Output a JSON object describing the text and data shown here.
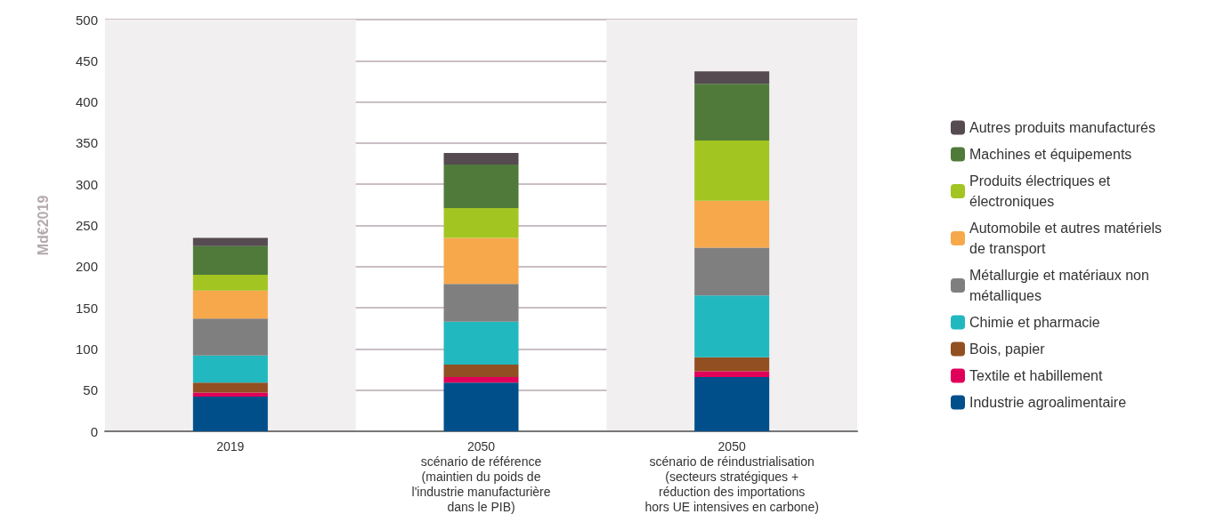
{
  "chart_data": {
    "type": "bar",
    "stacked": true,
    "ylabel": "Md€2019",
    "categories": [
      "2019",
      "2050\nscénario de référence\n(maintien du poids de\nl'industrie manufacturière\ndans le PIB)",
      "2050\nscénario de réindustrialisation\n(secteurs stratégiques +\nréduction des importations\nhors UE intensives en carbone)"
    ],
    "series": [
      {
        "name": "Industrie agroalimentaire",
        "color": "#004f8b",
        "values": [
          42,
          59,
          66
        ]
      },
      {
        "name": "Textile et habillement",
        "color": "#e0005a",
        "values": [
          5,
          7,
          7
        ]
      },
      {
        "name": "Bois, papier",
        "color": "#924f21",
        "values": [
          12,
          15,
          17
        ]
      },
      {
        "name": "Chimie et pharmacie",
        "color": "#22b8bf",
        "values": [
          33,
          52,
          75
        ]
      },
      {
        "name": "Métallurgie et matériaux non métalliques",
        "color": "#7f7f7f",
        "values": [
          45,
          46,
          58
        ]
      },
      {
        "name": "Automobile et autres matériels de transport",
        "color": "#f6a84b",
        "values": [
          34,
          56,
          57
        ]
      },
      {
        "name": "Produits électriques et électroniques",
        "color": "#a2c522",
        "values": [
          19,
          36,
          73
        ]
      },
      {
        "name": "Machines et équipements",
        "color": "#507a3a",
        "values": [
          35,
          53,
          69
        ]
      },
      {
        "name": "Autres produits manufacturés",
        "color": "#554b51",
        "values": [
          10,
          14,
          15
        ]
      }
    ],
    "ylim": [
      0,
      500
    ],
    "yticks": [
      0,
      50,
      100,
      150,
      200,
      250,
      300,
      350,
      400,
      450,
      500
    ],
    "grid": "y",
    "legend": "right"
  }
}
